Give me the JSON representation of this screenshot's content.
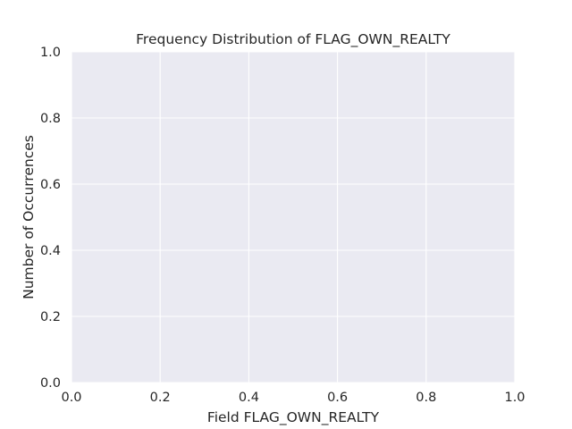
{
  "chart_data": {
    "type": "bar",
    "title": "Frequency Distribution of FLAG_OWN_REALTY",
    "xlabel": "Field FLAG_OWN_REALTY",
    "ylabel": "Number of Occurrences",
    "xlim": [
      0.0,
      1.0
    ],
    "ylim": [
      0.0,
      1.0
    ],
    "xticks": [
      "0.0",
      "0.2",
      "0.4",
      "0.6",
      "0.8",
      "1.0"
    ],
    "yticks": [
      "0.0",
      "0.2",
      "0.4",
      "0.6",
      "0.8",
      "1.0"
    ],
    "categories": [],
    "values": [],
    "grid": true,
    "colors": {
      "plot_background": "#eaeaf2",
      "grid": "#ffffff",
      "text": "#262626"
    }
  }
}
